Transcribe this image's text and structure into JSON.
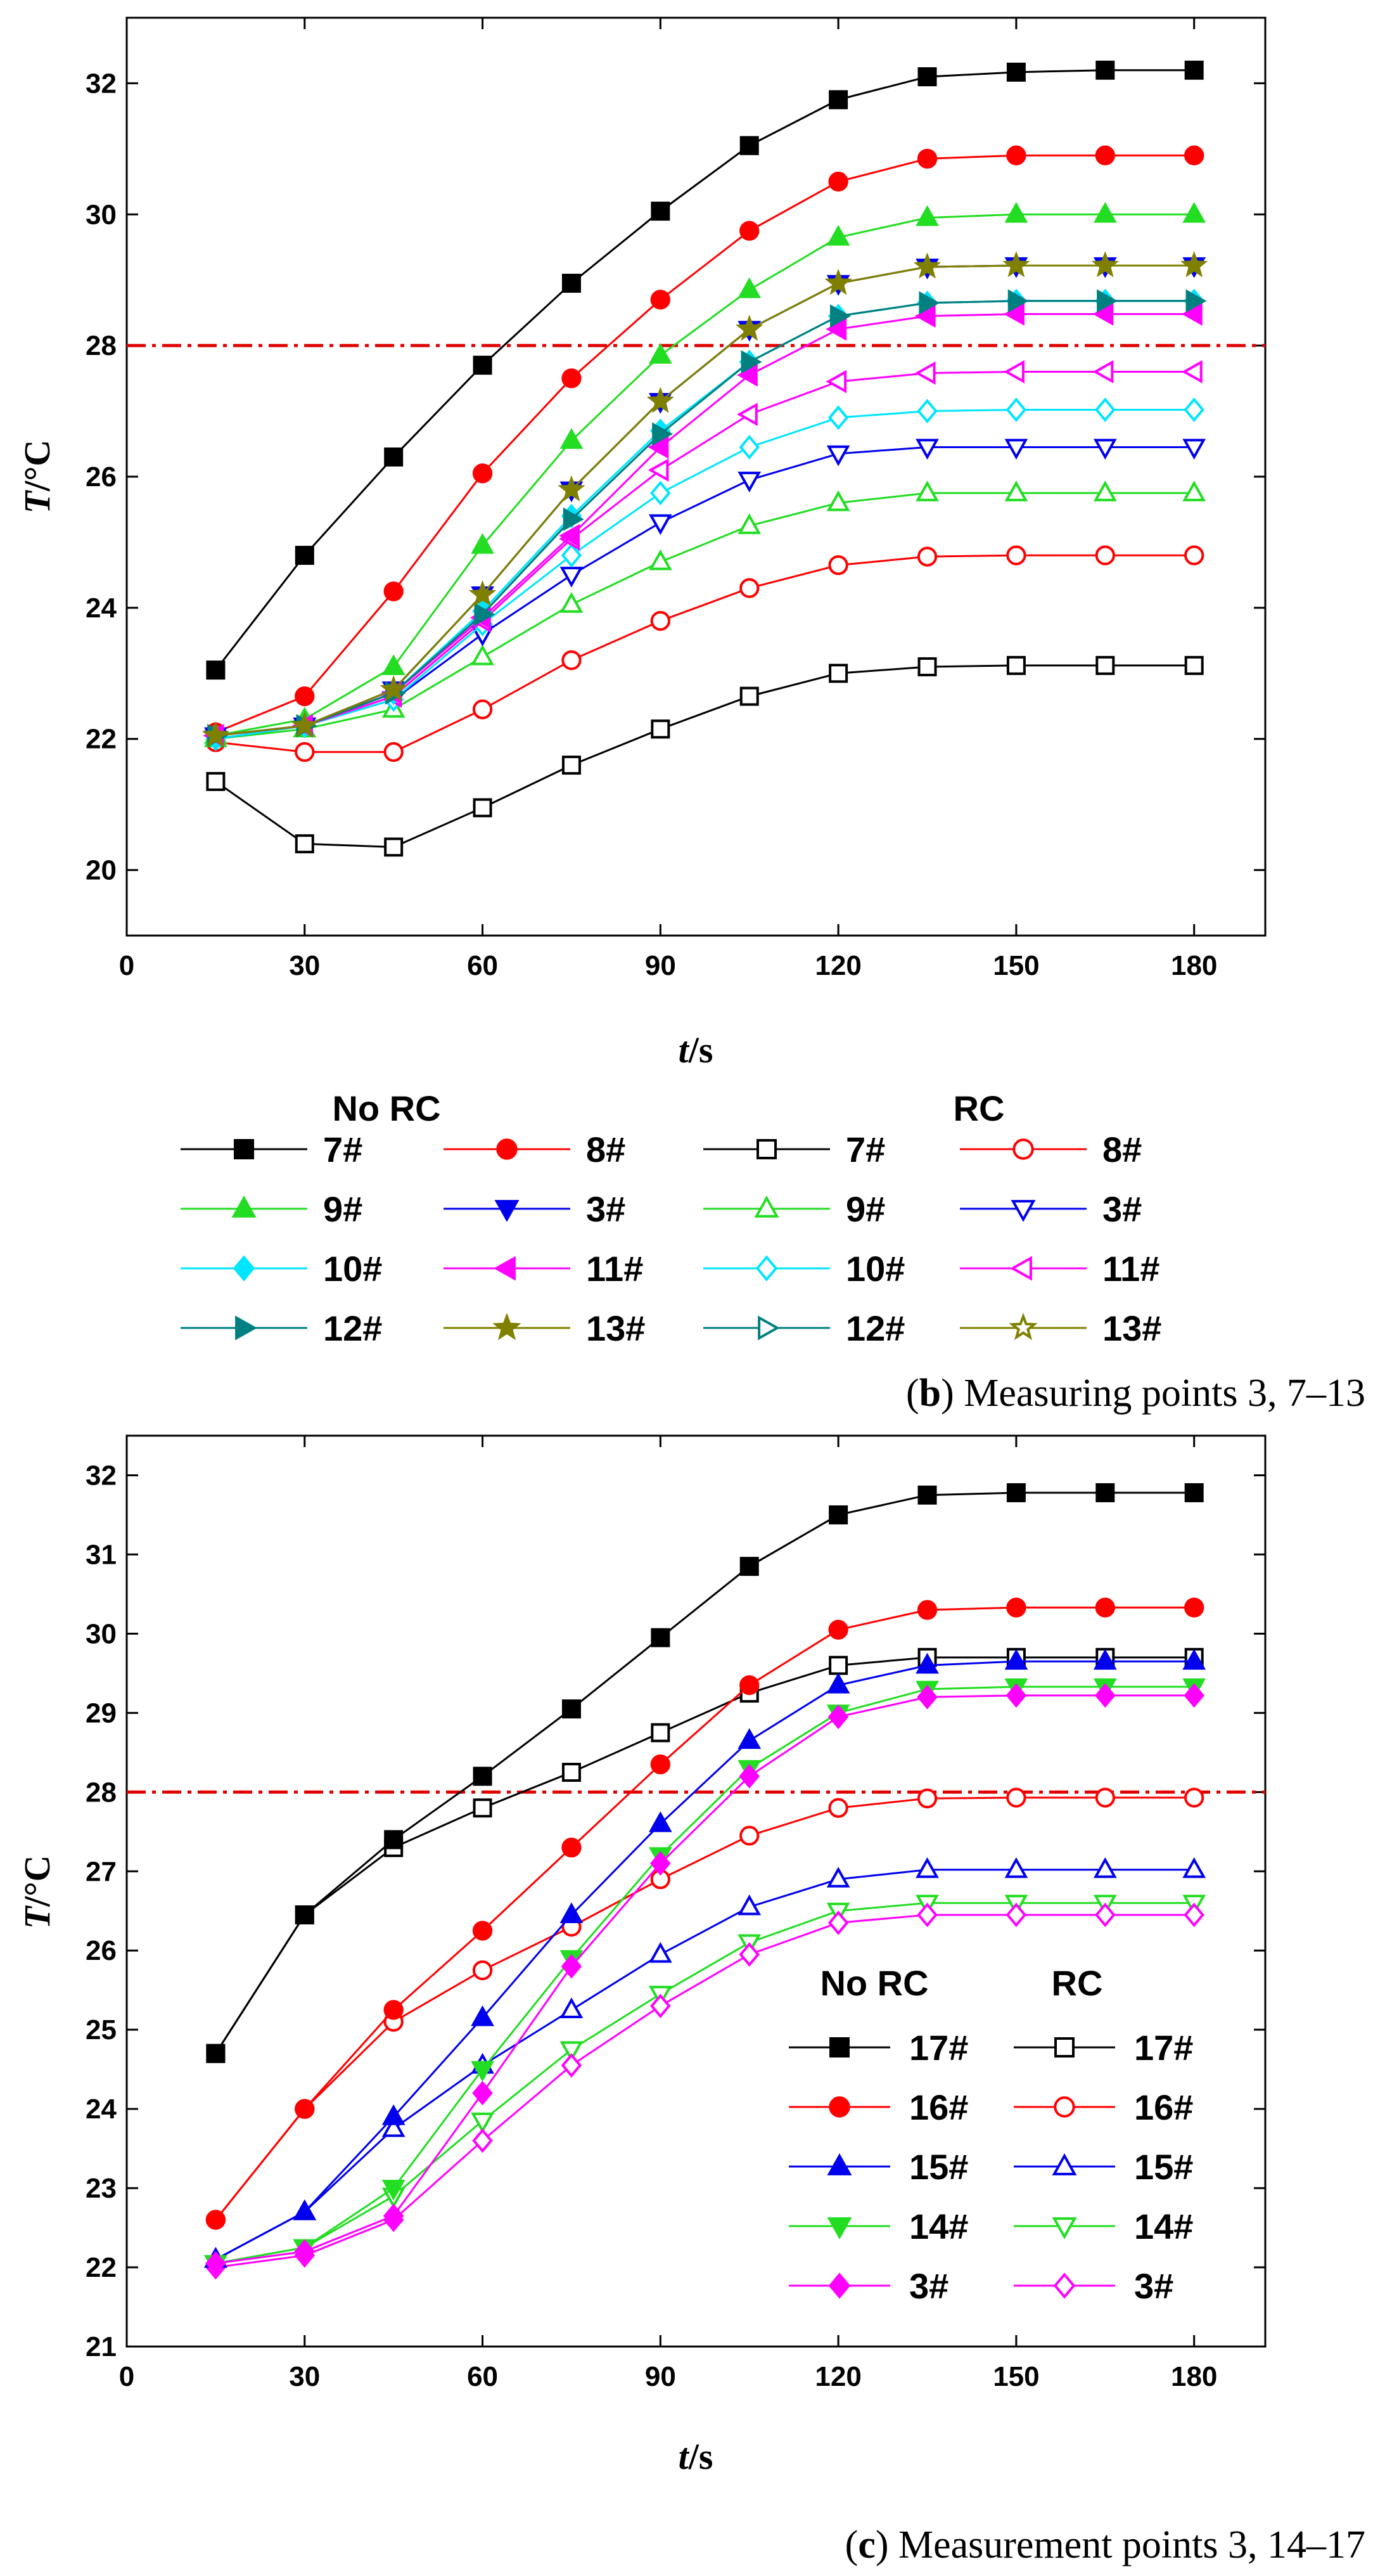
{
  "colors": {
    "black": "#000000",
    "red": "#ff0000",
    "green": "#22dd22",
    "blue": "#0000ee",
    "cyan": "#00e5ff",
    "magenta": "#ff00ff",
    "teal": "#008080",
    "olive": "#808000",
    "threshold": "#e00000"
  },
  "chart_data": [
    {
      "type": "line",
      "caption_letter": "b",
      "caption_text": ") Measuring points 3, 7–13",
      "xlabel_italic": "t",
      "xlabel_rest": "/s",
      "ylabel_italic": "T",
      "ylabel_rest": "/°C",
      "xlim": [
        0,
        192
      ],
      "ylim": [
        19,
        33
      ],
      "xticks": [
        0,
        30,
        60,
        90,
        120,
        150,
        180
      ],
      "yticks": [
        20,
        22,
        24,
        26,
        28,
        30,
        32
      ],
      "threshold": 28,
      "legend_headers": [
        "No RC",
        "RC"
      ],
      "x": [
        15,
        30,
        45,
        60,
        75,
        90,
        105,
        120,
        135,
        150,
        165,
        180
      ],
      "series": [
        {
          "name": "7#",
          "group": "No RC",
          "color": "black",
          "marker": "square",
          "filled": true,
          "values": [
            23.05,
            24.8,
            26.3,
            27.7,
            28.95,
            30.05,
            31.05,
            31.75,
            32.1,
            32.17,
            32.2,
            32.2
          ]
        },
        {
          "name": "8#",
          "group": "No RC",
          "color": "red",
          "marker": "circle",
          "filled": true,
          "values": [
            22.1,
            22.65,
            24.25,
            26.05,
            27.5,
            28.7,
            29.75,
            30.5,
            30.85,
            30.9,
            30.9,
            30.9
          ]
        },
        {
          "name": "9#",
          "group": "No RC",
          "color": "green",
          "marker": "triangle-up",
          "filled": true,
          "values": [
            22.05,
            22.3,
            23.1,
            24.95,
            26.55,
            27.85,
            28.85,
            29.65,
            29.95,
            30.0,
            30.0,
            30.0
          ]
        },
        {
          "name": "3#",
          "group": "No RC",
          "color": "blue",
          "marker": "triangle-down",
          "filled": true,
          "values": [
            22.05,
            22.2,
            22.75,
            24.2,
            25.8,
            27.15,
            28.25,
            28.95,
            29.2,
            29.22,
            29.22,
            29.22
          ]
        },
        {
          "name": "10#",
          "group": "No RC",
          "color": "cyan",
          "marker": "diamond",
          "filled": true,
          "values": [
            22.05,
            22.2,
            22.7,
            23.95,
            25.4,
            26.7,
            27.75,
            28.45,
            28.65,
            28.68,
            28.68,
            28.68
          ]
        },
        {
          "name": "11#",
          "group": "No RC",
          "color": "magenta",
          "marker": "triangle-left",
          "filled": true,
          "values": [
            22.05,
            22.2,
            22.7,
            23.85,
            25.1,
            26.45,
            27.55,
            28.25,
            28.45,
            28.48,
            28.48,
            28.48
          ]
        },
        {
          "name": "12#",
          "group": "No RC",
          "color": "teal",
          "marker": "triangle-right",
          "filled": true,
          "values": [
            22.05,
            22.2,
            22.7,
            23.9,
            25.35,
            26.65,
            27.75,
            28.45,
            28.65,
            28.68,
            28.68,
            28.68
          ]
        },
        {
          "name": "13#",
          "group": "No RC",
          "color": "olive",
          "marker": "star",
          "filled": true,
          "values": [
            22.05,
            22.2,
            22.75,
            24.2,
            25.8,
            27.15,
            28.25,
            28.95,
            29.2,
            29.22,
            29.22,
            29.22
          ]
        },
        {
          "name": "7#",
          "group": "RC",
          "color": "black",
          "marker": "square",
          "filled": false,
          "values": [
            21.35,
            20.4,
            20.35,
            20.95,
            21.6,
            22.15,
            22.65,
            23.0,
            23.1,
            23.12,
            23.12,
            23.12
          ]
        },
        {
          "name": "8#",
          "group": "RC",
          "color": "red",
          "marker": "circle",
          "filled": false,
          "values": [
            21.95,
            21.8,
            21.8,
            22.45,
            23.2,
            23.8,
            24.3,
            24.65,
            24.78,
            24.8,
            24.8,
            24.8
          ]
        },
        {
          "name": "9#",
          "group": "RC",
          "color": "green",
          "marker": "triangle-up",
          "filled": false,
          "values": [
            22.0,
            22.15,
            22.45,
            23.25,
            24.05,
            24.7,
            25.25,
            25.6,
            25.75,
            25.75,
            25.75,
            25.75
          ]
        },
        {
          "name": "3#",
          "group": "RC",
          "color": "blue",
          "marker": "triangle-down",
          "filled": false,
          "values": [
            22.0,
            22.2,
            22.6,
            23.6,
            24.5,
            25.3,
            25.95,
            26.35,
            26.45,
            26.45,
            26.45,
            26.45
          ]
        },
        {
          "name": "10#",
          "group": "RC",
          "color": "cyan",
          "marker": "diamond",
          "filled": false,
          "values": [
            22.0,
            22.2,
            22.6,
            23.75,
            24.8,
            25.75,
            26.45,
            26.9,
            27.0,
            27.02,
            27.02,
            27.02
          ]
        },
        {
          "name": "11#",
          "group": "RC",
          "color": "magenta",
          "marker": "triangle-left",
          "filled": false,
          "values": [
            22.05,
            22.2,
            22.65,
            23.8,
            25.05,
            26.1,
            26.95,
            27.45,
            27.58,
            27.6,
            27.6,
            27.6
          ]
        },
        {
          "name": "12#",
          "group": "RC",
          "color": "teal",
          "marker": "triangle-right",
          "filled": false,
          "values": [
            22.05,
            22.2,
            22.7,
            23.9,
            25.35,
            26.65,
            27.75,
            28.45,
            28.65,
            28.68,
            28.68,
            28.68
          ]
        },
        {
          "name": "13#",
          "group": "RC",
          "color": "olive",
          "marker": "star",
          "filled": false,
          "values": [
            22.05,
            22.2,
            22.75,
            24.2,
            25.8,
            27.15,
            28.25,
            28.95,
            29.2,
            29.22,
            29.22,
            29.22
          ]
        }
      ]
    },
    {
      "type": "line",
      "caption_letter": "c",
      "caption_text": ") Measurement points 3, 14–17",
      "xlabel_italic": "t",
      "xlabel_rest": "/s",
      "ylabel_italic": "T",
      "ylabel_rest": "/°C",
      "xlim": [
        0,
        192
      ],
      "ylim": [
        21,
        32.5
      ],
      "xticks": [
        0,
        30,
        60,
        90,
        120,
        150,
        180
      ],
      "yticks": [
        21,
        22,
        23,
        24,
        25,
        26,
        27,
        28,
        29,
        30,
        31,
        32
      ],
      "threshold": 28,
      "legend_headers": [
        "No RC",
        "RC"
      ],
      "x": [
        15,
        30,
        45,
        60,
        75,
        90,
        105,
        120,
        135,
        150,
        165,
        180
      ],
      "series": [
        {
          "name": "17#",
          "group": "No RC",
          "color": "black",
          "marker": "square",
          "filled": true,
          "values": [
            24.7,
            26.45,
            27.4,
            28.2,
            29.05,
            29.95,
            30.85,
            31.5,
            31.75,
            31.78,
            31.78,
            31.78
          ]
        },
        {
          "name": "16#",
          "group": "No RC",
          "color": "red",
          "marker": "circle",
          "filled": true,
          "values": [
            22.6,
            24.0,
            25.25,
            26.25,
            27.3,
            28.35,
            29.35,
            30.05,
            30.3,
            30.33,
            30.33,
            30.33
          ]
        },
        {
          "name": "15#",
          "group": "No RC",
          "color": "blue",
          "marker": "triangle-up",
          "filled": true,
          "values": [
            22.1,
            22.7,
            23.9,
            25.15,
            26.45,
            27.6,
            28.65,
            29.35,
            29.6,
            29.65,
            29.65,
            29.65
          ]
        },
        {
          "name": "14#",
          "group": "No RC",
          "color": "green",
          "marker": "triangle-down",
          "filled": true,
          "values": [
            22.05,
            22.25,
            23.0,
            24.5,
            25.9,
            27.2,
            28.3,
            29.0,
            29.3,
            29.33,
            29.33,
            29.33
          ]
        },
        {
          "name": "3#",
          "group": "No RC",
          "color": "magenta",
          "marker": "diamond",
          "filled": true,
          "values": [
            22.05,
            22.2,
            22.65,
            24.2,
            25.8,
            27.1,
            28.2,
            28.95,
            29.2,
            29.22,
            29.22,
            29.22
          ]
        },
        {
          "name": "17#",
          "group": "RC",
          "color": "black",
          "marker": "square",
          "filled": false,
          "values": [
            24.7,
            26.45,
            27.3,
            27.8,
            28.25,
            28.75,
            29.25,
            29.6,
            29.7,
            29.7,
            29.7,
            29.7
          ]
        },
        {
          "name": "16#",
          "group": "RC",
          "color": "red",
          "marker": "circle",
          "filled": false,
          "values": [
            22.6,
            24.0,
            25.1,
            25.75,
            26.3,
            26.9,
            27.45,
            27.8,
            27.92,
            27.93,
            27.93,
            27.93
          ]
        },
        {
          "name": "15#",
          "group": "RC",
          "color": "blue",
          "marker": "triangle-up",
          "filled": false,
          "values": [
            22.1,
            22.7,
            23.75,
            24.55,
            25.25,
            25.95,
            26.55,
            26.9,
            27.02,
            27.02,
            27.02,
            27.02
          ]
        },
        {
          "name": "14#",
          "group": "RC",
          "color": "green",
          "marker": "triangle-down",
          "filled": false,
          "values": [
            22.05,
            22.25,
            22.9,
            23.85,
            24.75,
            25.45,
            26.1,
            26.5,
            26.6,
            26.6,
            26.6,
            26.6
          ]
        },
        {
          "name": "3#",
          "group": "RC",
          "color": "magenta",
          "marker": "diamond",
          "filled": false,
          "values": [
            22.0,
            22.15,
            22.6,
            23.6,
            24.55,
            25.3,
            25.95,
            26.35,
            26.45,
            26.45,
            26.45,
            26.45
          ]
        }
      ]
    }
  ]
}
